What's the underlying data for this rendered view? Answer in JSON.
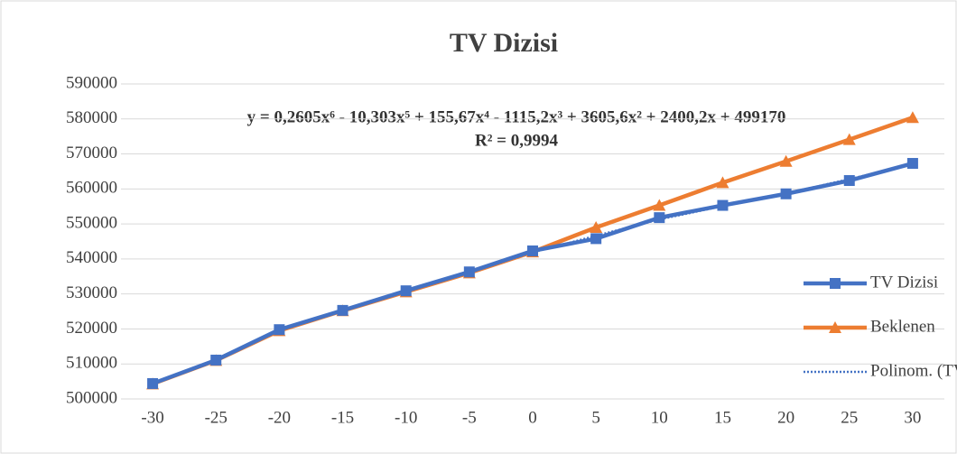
{
  "chart_data": {
    "type": "line",
    "title": "TV Dizisi",
    "annotations": [
      "y = 0,2605x⁶ - 10,303x⁵ + 155,67x⁴ - 1115,2x³ + 3605,6x² + 2400,2x + 499170",
      "R² = 0,9994"
    ],
    "categories": [
      "-30",
      "-25",
      "-20",
      "-15",
      "-10",
      "-5",
      "0",
      "5",
      "10",
      "15",
      "20",
      "25",
      "30"
    ],
    "series": [
      {
        "name": "TV Dizisi",
        "color": "#4472c4",
        "marker": "square",
        "values": [
          504400,
          511100,
          519800,
          525300,
          530900,
          536300,
          542300,
          545800,
          551800,
          555300,
          558600,
          562400,
          567300
        ]
      },
      {
        "name": "Beklenen",
        "color": "#ed7d31",
        "marker": "triangle",
        "values": [
          504300,
          511000,
          519500,
          525200,
          530600,
          536000,
          542000,
          549000,
          555300,
          561800,
          567900,
          574100,
          580400
        ]
      },
      {
        "name": "Polinom. (TV Dizisi)",
        "color": "#4472c4",
        "dashed": true,
        "values": [
          504500,
          511000,
          519600,
          525400,
          530800,
          536300,
          541900,
          546600,
          551300,
          555100,
          558700,
          562800,
          567000
        ]
      }
    ],
    "ylim": [
      500000,
      590000
    ],
    "yticks": [
      500000,
      510000,
      520000,
      530000,
      540000,
      550000,
      560000,
      570000,
      580000,
      590000
    ],
    "grid": true,
    "legend": "right"
  }
}
